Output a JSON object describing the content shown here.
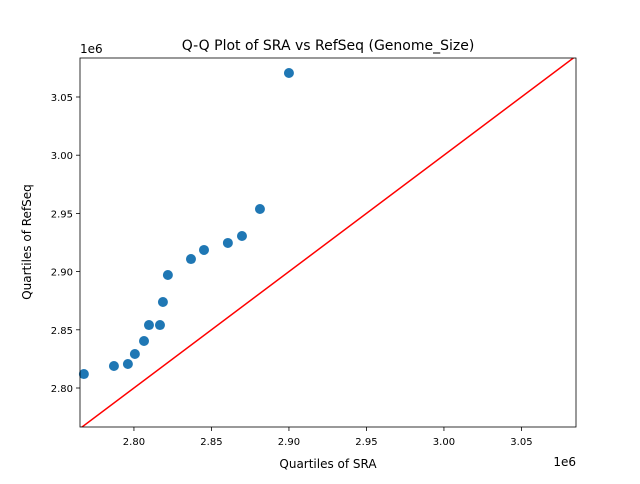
{
  "chart_data": {
    "type": "scatter",
    "title": "Q-Q Plot of SRA vs RefSeq (Genome_Size)",
    "xlabel": "Quartiles of SRA",
    "ylabel": "Quartiles of RefSeq",
    "x_offset_label": "1e6",
    "y_offset_label": "1e6",
    "xlim": [
      2.7652,
      3.0852
    ],
    "ylim": [
      2.7665,
      3.0835
    ],
    "xticks": [
      "2.80",
      "2.85",
      "2.90",
      "2.95",
      "3.00",
      "3.05"
    ],
    "yticks": [
      "2.80",
      "2.85",
      "2.90",
      "2.95",
      "3.00",
      "3.05"
    ],
    "grid": false,
    "points": [
      {
        "x": 2.7677,
        "y": 2.812
      },
      {
        "x": 2.7871,
        "y": 2.8189
      },
      {
        "x": 2.7961,
        "y": 2.8206
      },
      {
        "x": 2.8006,
        "y": 2.8292
      },
      {
        "x": 2.8065,
        "y": 2.8404
      },
      {
        "x": 2.8097,
        "y": 2.8541
      },
      {
        "x": 2.8168,
        "y": 2.8541
      },
      {
        "x": 2.8187,
        "y": 2.8739
      },
      {
        "x": 2.8219,
        "y": 2.8971
      },
      {
        "x": 2.8368,
        "y": 2.9108
      },
      {
        "x": 2.8452,
        "y": 2.9186
      },
      {
        "x": 2.8606,
        "y": 2.9246
      },
      {
        "x": 2.8697,
        "y": 2.9306
      },
      {
        "x": 2.8813,
        "y": 2.9538
      },
      {
        "x": 2.9,
        "y": 3.0706
      }
    ],
    "reference_line": "y = x",
    "point_color": "#1f77b4",
    "line_color": "#ff0000"
  }
}
